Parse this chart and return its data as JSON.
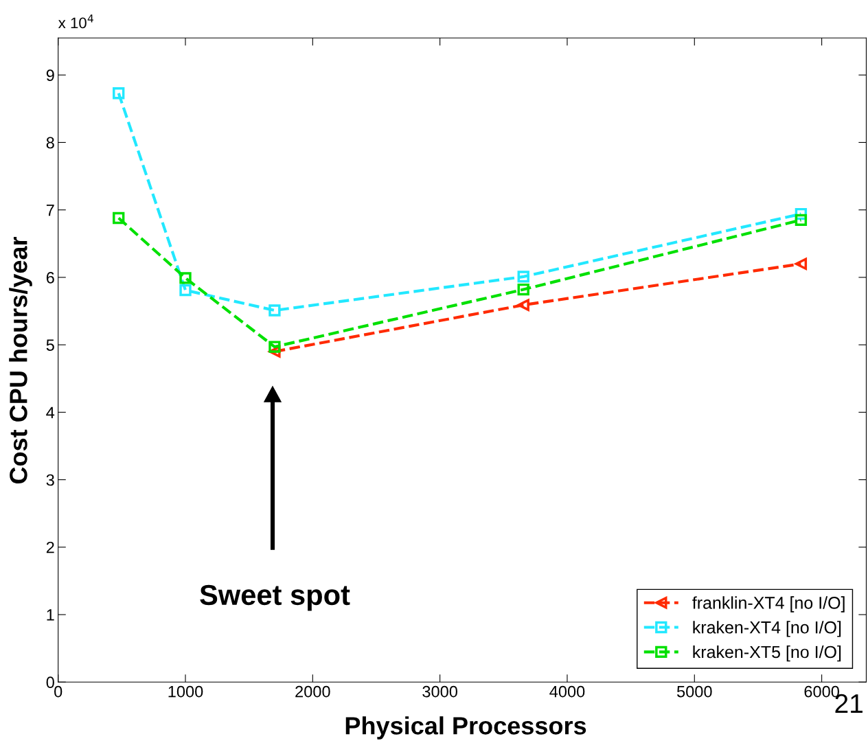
{
  "chart_data": {
    "type": "line",
    "xlabel": "Physical Processors",
    "ylabel": "Cost CPU hours/year",
    "xlim": [
      0,
      6350
    ],
    "xticks": [
      0,
      1000,
      2000,
      3000,
      4000,
      5000,
      6000
    ],
    "ylim": [
      0,
      9.55
    ],
    "yticks": [
      0,
      1,
      2,
      3,
      4,
      5,
      6,
      7,
      8,
      9
    ],
    "grid": false,
    "legend": "bottom right",
    "line_style": "dashed",
    "series": [
      {
        "name": "franklin-XT4 [no I/O]",
        "color": "#ff2a00",
        "marker": "triangle",
        "x": [
          1701,
          3656,
          5837
        ],
        "values": [
          4.9,
          5.59,
          6.2
        ]
      },
      {
        "name": "kraken-XT4 [no I/O]",
        "color": "#22e8ff",
        "marker": "square",
        "x": [
          475,
          1000,
          1701,
          3656,
          5837
        ],
        "values": [
          8.73,
          5.81,
          5.51,
          6.01,
          6.94
        ]
      },
      {
        "name": "kraken-XT5 [no I/O]",
        "color": "#00e000",
        "marker": "square",
        "x": [
          475,
          1000,
          1701,
          3656,
          5837
        ],
        "values": [
          6.88,
          5.99,
          4.97,
          5.82,
          6.85
        ]
      }
    ],
    "annotations": [
      "x 10$^{4}$",
      "Sweet spot",
      "21"
    ]
  }
}
